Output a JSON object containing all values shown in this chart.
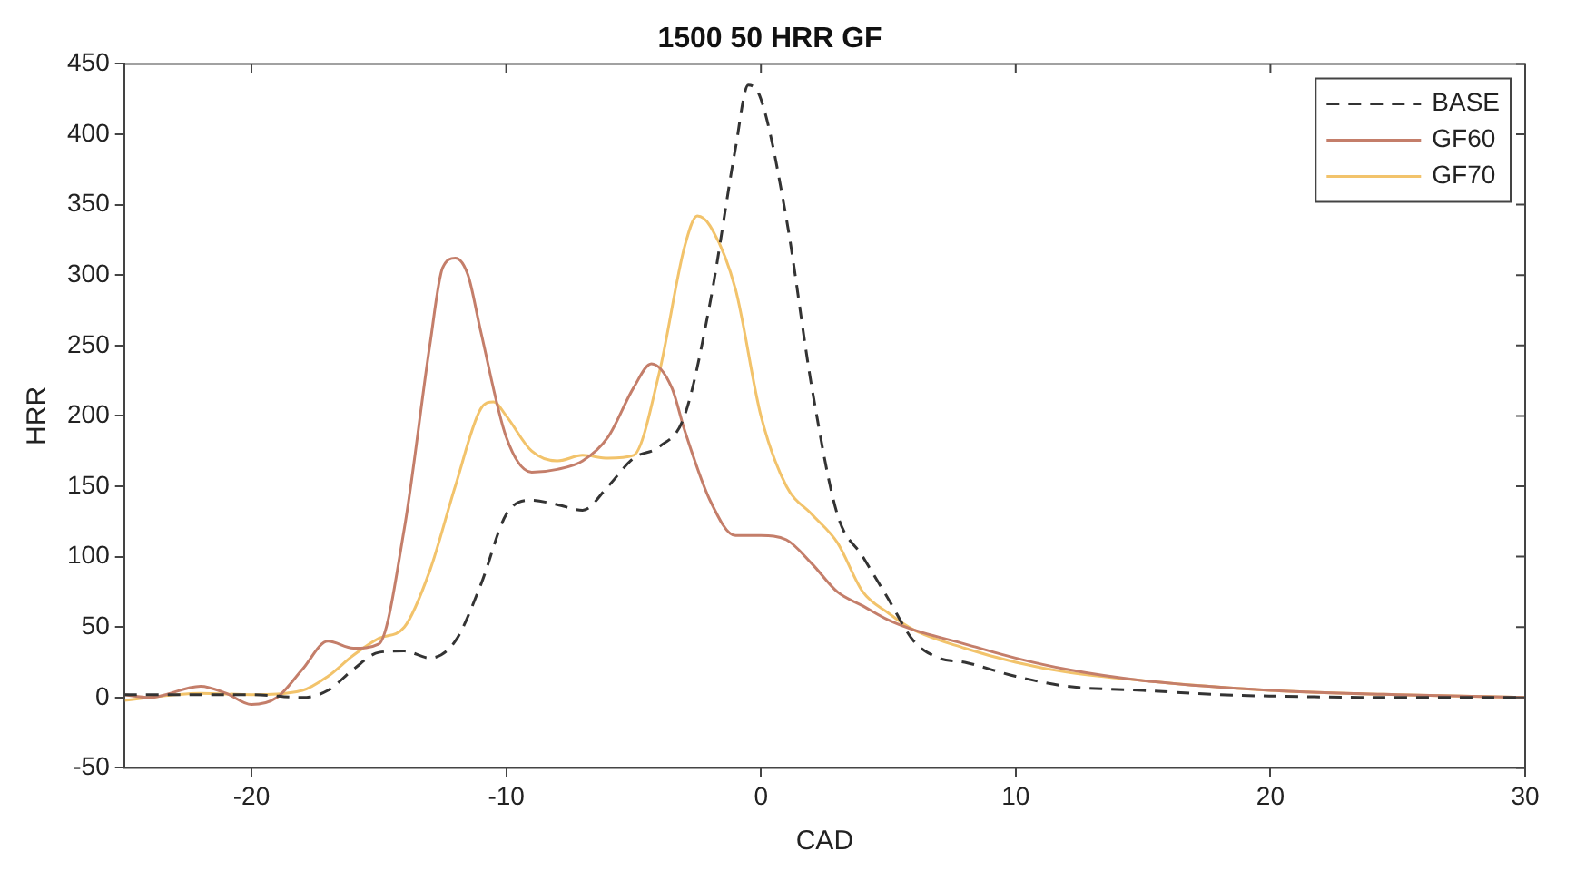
{
  "chart_data": {
    "type": "line",
    "title": "1500 50 HRR GF",
    "xlabel": "CAD",
    "ylabel": "HRR",
    "xlim": [
      -25,
      30
    ],
    "xticks": [
      -20,
      -10,
      0,
      10,
      20,
      30
    ],
    "ylim": [
      -50,
      450
    ],
    "yticks": [
      -50,
      0,
      50,
      100,
      150,
      200,
      250,
      300,
      350,
      400,
      450
    ],
    "grid": false,
    "legend": "top right",
    "marker": "none",
    "series": [
      {
        "name": "BASE",
        "color": "#333333",
        "line_style": "dashed",
        "x": [
          -25,
          -22,
          -20,
          -18,
          -17,
          -16,
          -15,
          -14,
          -13,
          -12,
          -11,
          -10,
          -9,
          -8,
          -7,
          -6,
          -5,
          -4,
          -3,
          -2,
          -1,
          -0.5,
          0,
          1,
          2,
          3,
          4,
          5,
          6,
          7,
          8,
          10,
          12,
          15,
          18,
          20,
          25,
          30
        ],
        "values": [
          2,
          2,
          2,
          0,
          5,
          20,
          32,
          33,
          28,
          40,
          80,
          130,
          140,
          137,
          133,
          150,
          170,
          178,
          200,
          280,
          390,
          435,
          425,
          340,
          220,
          130,
          100,
          70,
          40,
          28,
          25,
          15,
          8,
          5,
          2,
          1,
          0,
          0
        ]
      },
      {
        "name": "GF60",
        "color": "#c47e6a",
        "line_style": "solid",
        "x": [
          -25,
          -24,
          -22,
          -21,
          -20,
          -19,
          -18,
          -17,
          -16,
          -15,
          -14,
          -13,
          -12.5,
          -12,
          -11.5,
          -11,
          -10,
          -9,
          -8,
          -7,
          -6,
          -5,
          -4.3,
          -3.5,
          -3,
          -2,
          -1,
          0,
          1,
          2,
          3,
          4,
          5,
          6,
          8,
          10,
          12,
          15,
          20,
          25,
          30
        ],
        "values": [
          2,
          0,
          8,
          3,
          -5,
          0,
          20,
          40,
          35,
          38,
          120,
          250,
          305,
          312,
          300,
          260,
          185,
          160,
          162,
          168,
          185,
          220,
          237,
          220,
          190,
          140,
          115,
          115,
          112,
          95,
          75,
          65,
          55,
          48,
          38,
          28,
          20,
          12,
          5,
          2,
          0
        ]
      },
      {
        "name": "GF70",
        "color": "#f2c36b",
        "line_style": "solid",
        "x": [
          -25,
          -22,
          -20,
          -18,
          -17,
          -16,
          -15,
          -14,
          -13,
          -12,
          -11,
          -10.5,
          -10,
          -9,
          -8,
          -7,
          -6,
          -5,
          -4,
          -3,
          -2.5,
          -2,
          -1,
          0,
          1,
          2,
          3,
          4,
          5,
          6,
          8,
          10,
          12,
          15,
          20,
          25,
          30
        ],
        "values": [
          -2,
          3,
          2,
          5,
          15,
          30,
          42,
          50,
          90,
          150,
          205,
          210,
          200,
          175,
          168,
          172,
          170,
          172,
          230,
          320,
          342,
          335,
          290,
          200,
          150,
          130,
          110,
          75,
          60,
          48,
          35,
          25,
          18,
          12,
          5,
          2,
          0
        ]
      }
    ]
  }
}
